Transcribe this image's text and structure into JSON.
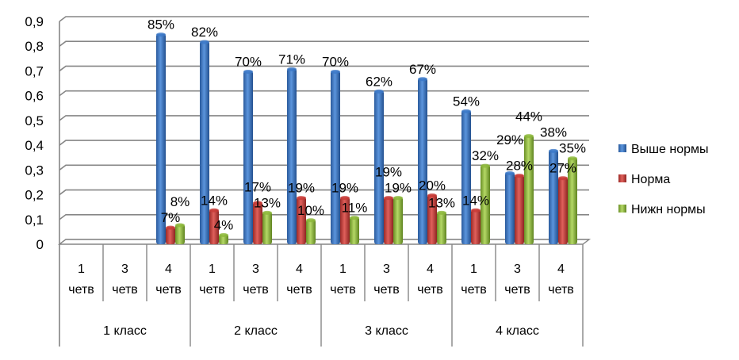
{
  "chart_data": {
    "type": "bar",
    "title": "",
    "xlabel": "",
    "ylabel": "",
    "ylim": [
      0,
      0.9
    ],
    "yticks": [
      "0",
      "0,1",
      "0,2",
      "0,3",
      "0,4",
      "0,5",
      "0,6",
      "0,7",
      "0,8",
      "0,9"
    ],
    "grid": true,
    "legend_position": "right",
    "categories": [
      "1 четв",
      "3 четв",
      "4 четв",
      "1 четв",
      "3 четв",
      "4 четв",
      "1 четв",
      "3 четв",
      "4 четв",
      "1 четв",
      "3 четв",
      "4 четв"
    ],
    "category_lines": [
      [
        "1",
        "четв"
      ],
      [
        "3",
        "четв"
      ],
      [
        "4",
        "четв"
      ],
      [
        "1",
        "четв"
      ],
      [
        "3",
        "четв"
      ],
      [
        "4",
        "четв"
      ],
      [
        "1",
        "четв"
      ],
      [
        "3",
        "четв"
      ],
      [
        "4",
        "четв"
      ],
      [
        "1",
        "четв"
      ],
      [
        "3",
        "четв"
      ],
      [
        "4",
        "четв"
      ]
    ],
    "groups": [
      "1 класс",
      "2 класс",
      "3 класс",
      "4 класс"
    ],
    "series": [
      {
        "name": "Выше нормы",
        "color": "#3b78c8",
        "values": [
          null,
          null,
          0.85,
          0.82,
          0.7,
          0.71,
          0.7,
          0.62,
          0.67,
          0.54,
          0.29,
          0.38
        ],
        "labels": [
          "",
          "",
          "85%",
          "82%",
          "70%",
          "71%",
          "70%",
          "62%",
          "67%",
          "54%",
          "29%",
          "38%"
        ]
      },
      {
        "name": "Норма",
        "color": "#c83a36",
        "values": [
          null,
          null,
          0.07,
          0.14,
          0.17,
          0.19,
          0.19,
          0.19,
          0.2,
          0.14,
          0.28,
          0.27
        ],
        "labels": [
          "",
          "",
          "7%",
          "14%",
          "17%",
          "19%",
          "19%",
          "19%",
          "20%",
          "14%",
          "28%",
          "27%"
        ]
      },
      {
        "name": "Нижн нормы",
        "color": "#8cb83a",
        "values": [
          null,
          null,
          0.08,
          0.04,
          0.13,
          0.1,
          0.11,
          0.19,
          0.13,
          0.32,
          0.44,
          0.35
        ],
        "labels": [
          "",
          "",
          "8%",
          "4%",
          "13%",
          "10%",
          "11%",
          "19%",
          "13%",
          "32%",
          "44%",
          "35%"
        ]
      }
    ]
  }
}
